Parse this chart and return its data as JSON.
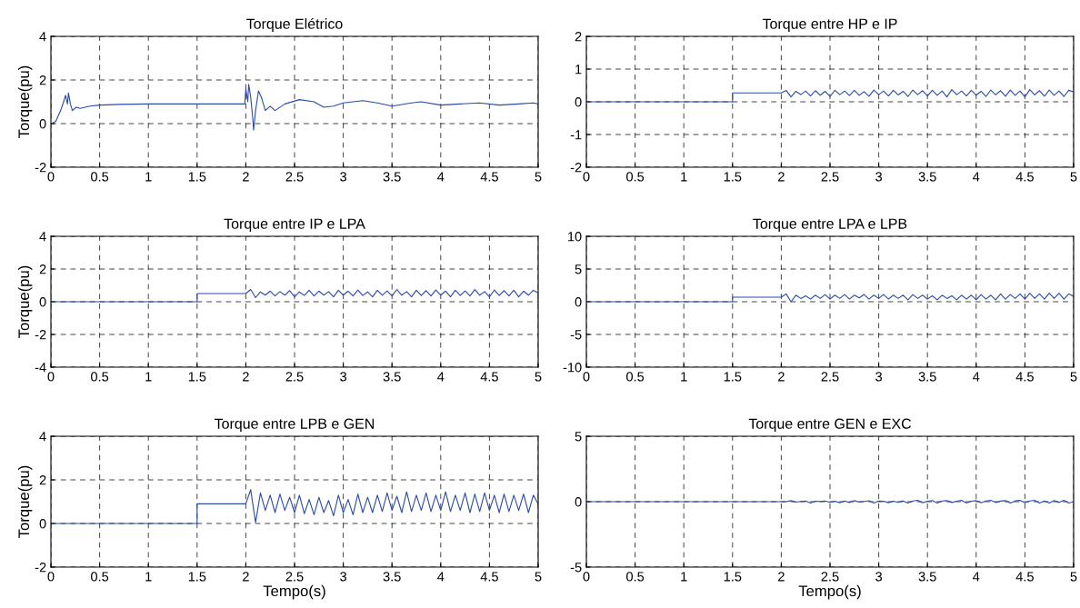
{
  "chart_data": [
    {
      "type": "line",
      "title": "Torque Elétrico",
      "ylabel": "Torque(pu)",
      "xlim": [
        0,
        5
      ],
      "xticks": [
        0,
        0.5,
        1,
        1.5,
        2,
        2.5,
        3,
        3.5,
        4,
        4.5,
        5
      ],
      "ylim": [
        -2,
        4
      ],
      "yticks": [
        -2,
        0,
        2,
        4
      ],
      "grid": true,
      "x": [
        0,
        0.05,
        0.1,
        0.13,
        0.15,
        0.17,
        0.18,
        0.2,
        0.22,
        0.26,
        0.3,
        0.4,
        0.5,
        0.7,
        1.0,
        1.5,
        1.99,
        2.0,
        2.02,
        2.03,
        2.05,
        2.07,
        2.08,
        2.1,
        2.13,
        2.16,
        2.2,
        2.25,
        2.3,
        2.4,
        2.55,
        2.7,
        2.8,
        2.9,
        3.0,
        3.2,
        3.35,
        3.5,
        3.7,
        3.8,
        4.0,
        4.2,
        4.4,
        4.6,
        4.8,
        4.95,
        5.0
      ],
      "series": [
        {
          "color": "#2b4bab",
          "values": [
            0,
            0.1,
            0.6,
            1.0,
            1.3,
            0.9,
            1.4,
            0.9,
            0.6,
            0.75,
            0.7,
            0.8,
            0.85,
            0.88,
            0.9,
            0.9,
            0.9,
            1.6,
            1.0,
            1.8,
            1.2,
            0.3,
            -0.3,
            0.6,
            1.5,
            1.2,
            0.6,
            0.8,
            0.6,
            0.9,
            1.1,
            1.0,
            0.75,
            0.8,
            0.95,
            1.05,
            0.95,
            0.8,
            0.95,
            1.0,
            0.85,
            0.9,
            0.95,
            0.85,
            0.9,
            0.95,
            0.9
          ]
        }
      ]
    },
    {
      "type": "line",
      "title": "Torque entre HP e IP",
      "xlim": [
        0,
        5
      ],
      "xticks": [
        0,
        0.5,
        1,
        1.5,
        2,
        2.5,
        3,
        3.5,
        4,
        4.5,
        5
      ],
      "ylim": [
        -2,
        2
      ],
      "yticks": [
        -2,
        -1,
        0,
        1,
        2
      ],
      "grid": true,
      "x": [
        0,
        1.5,
        1.5,
        2.0,
        2.05,
        2.1,
        2.15,
        2.2,
        2.25,
        2.3,
        2.35,
        2.4,
        2.45,
        2.5,
        2.55,
        2.6,
        2.65,
        2.7,
        2.75,
        2.8,
        2.85,
        2.9,
        2.95,
        3.0,
        3.05,
        3.1,
        3.15,
        3.2,
        3.25,
        3.3,
        3.35,
        3.4,
        3.45,
        3.5,
        3.55,
        3.6,
        3.65,
        3.7,
        3.75,
        3.8,
        3.85,
        3.9,
        3.95,
        4.0,
        4.05,
        4.1,
        4.15,
        4.2,
        4.25,
        4.3,
        4.35,
        4.4,
        4.45,
        4.5,
        4.55,
        4.6,
        4.65,
        4.7,
        4.75,
        4.8,
        4.85,
        4.9,
        4.95,
        5.0
      ],
      "series": [
        {
          "color": "#2b4bab",
          "values": [
            0,
            0,
            0.27,
            0.27,
            0.35,
            0.15,
            0.32,
            0.22,
            0.33,
            0.18,
            0.34,
            0.2,
            0.32,
            0.16,
            0.35,
            0.22,
            0.33,
            0.19,
            0.35,
            0.2,
            0.31,
            0.17,
            0.36,
            0.22,
            0.33,
            0.18,
            0.35,
            0.21,
            0.32,
            0.16,
            0.36,
            0.22,
            0.34,
            0.18,
            0.35,
            0.2,
            0.33,
            0.15,
            0.37,
            0.22,
            0.33,
            0.18,
            0.35,
            0.2,
            0.32,
            0.16,
            0.36,
            0.21,
            0.34,
            0.17,
            0.36,
            0.2,
            0.33,
            0.15,
            0.37,
            0.21,
            0.34,
            0.17,
            0.36,
            0.2,
            0.33,
            0.16,
            0.35,
            0.3
          ]
        }
      ]
    },
    {
      "type": "line",
      "title": "Torque entre IP e LPA",
      "ylabel": "Torque(pu)",
      "xlim": [
        0,
        5
      ],
      "xticks": [
        0,
        0.5,
        1,
        1.5,
        2,
        2.5,
        3,
        3.5,
        4,
        4.5,
        5
      ],
      "ylim": [
        -4,
        4
      ],
      "yticks": [
        -4,
        -2,
        0,
        2,
        4
      ],
      "grid": true,
      "x": [
        0,
        1.5,
        1.5,
        2.0,
        2.05,
        2.1,
        2.15,
        2.2,
        2.25,
        2.3,
        2.35,
        2.4,
        2.45,
        2.5,
        2.55,
        2.6,
        2.65,
        2.7,
        2.75,
        2.8,
        2.85,
        2.9,
        2.95,
        3.0,
        3.05,
        3.1,
        3.15,
        3.2,
        3.25,
        3.3,
        3.35,
        3.4,
        3.45,
        3.5,
        3.55,
        3.6,
        3.65,
        3.7,
        3.75,
        3.8,
        3.85,
        3.9,
        3.95,
        4.0,
        4.05,
        4.1,
        4.15,
        4.2,
        4.25,
        4.3,
        4.35,
        4.4,
        4.45,
        4.5,
        4.55,
        4.6,
        4.65,
        4.7,
        4.75,
        4.8,
        4.85,
        4.9,
        4.95,
        5.0
      ],
      "series": [
        {
          "color": "#2b4bab",
          "values": [
            0,
            0,
            0.5,
            0.5,
            0.75,
            0.25,
            0.6,
            0.4,
            0.65,
            0.35,
            0.62,
            0.4,
            0.68,
            0.3,
            0.6,
            0.38,
            0.7,
            0.35,
            0.65,
            0.4,
            0.62,
            0.3,
            0.7,
            0.4,
            0.65,
            0.35,
            0.72,
            0.38,
            0.6,
            0.3,
            0.7,
            0.4,
            0.66,
            0.35,
            0.75,
            0.4,
            0.62,
            0.3,
            0.7,
            0.38,
            0.68,
            0.35,
            0.72,
            0.4,
            0.65,
            0.3,
            0.7,
            0.38,
            0.66,
            0.35,
            0.74,
            0.4,
            0.62,
            0.3,
            0.72,
            0.38,
            0.68,
            0.35,
            0.7,
            0.3,
            0.65,
            0.4,
            0.7,
            0.55
          ]
        }
      ]
    },
    {
      "type": "line",
      "title": "Torque entre LPA e LPB",
      "xlim": [
        0,
        5
      ],
      "xticks": [
        0,
        0.5,
        1,
        1.5,
        2,
        2.5,
        3,
        3.5,
        4,
        4.5,
        5
      ],
      "ylim": [
        -10,
        10
      ],
      "yticks": [
        -10,
        -5,
        0,
        5,
        10
      ],
      "grid": true,
      "x": [
        0,
        1.5,
        1.5,
        2.0,
        2.05,
        2.1,
        2.15,
        2.2,
        2.25,
        2.3,
        2.35,
        2.4,
        2.45,
        2.5,
        2.55,
        2.6,
        2.65,
        2.7,
        2.75,
        2.8,
        2.85,
        2.9,
        2.95,
        3.0,
        3.05,
        3.1,
        3.15,
        3.2,
        3.25,
        3.3,
        3.35,
        3.4,
        3.45,
        3.5,
        3.55,
        3.6,
        3.65,
        3.7,
        3.75,
        3.8,
        3.85,
        3.9,
        3.95,
        4.0,
        4.05,
        4.1,
        4.15,
        4.2,
        4.25,
        4.3,
        4.35,
        4.4,
        4.45,
        4.5,
        4.55,
        4.6,
        4.65,
        4.7,
        4.75,
        4.8,
        4.85,
        4.9,
        4.95,
        5.0
      ],
      "series": [
        {
          "color": "#2b4bab",
          "values": [
            0,
            0,
            0.7,
            0.7,
            1.2,
            0.0,
            1.0,
            0.5,
            0.9,
            0.4,
            1.0,
            0.5,
            1.1,
            0.4,
            1.0,
            0.5,
            1.1,
            0.4,
            1.0,
            0.6,
            1.1,
            0.4,
            1.0,
            0.5,
            1.1,
            0.4,
            1.0,
            0.5,
            1.0,
            0.3,
            1.1,
            0.5,
            1.0,
            0.4,
            0.9,
            0.3,
            1.0,
            0.5,
            0.9,
            0.3,
            1.0,
            0.4,
            1.0,
            0.3,
            1.1,
            0.4,
            1.0,
            0.3,
            1.2,
            0.4,
            1.1,
            0.5,
            1.2,
            0.4,
            1.3,
            0.5,
            1.2,
            0.4,
            1.3,
            0.5,
            1.3,
            0.4,
            1.2,
            0.8
          ]
        }
      ]
    },
    {
      "type": "line",
      "title": "Torque entre LPB e GEN",
      "xlabel": "Tempo(s)",
      "ylabel": "Torque(pu)",
      "xlim": [
        0,
        5
      ],
      "xticks": [
        0,
        0.5,
        1,
        1.5,
        2,
        2.5,
        3,
        3.5,
        4,
        4.5,
        5
      ],
      "ylim": [
        -2,
        4
      ],
      "yticks": [
        -2,
        0,
        2,
        4
      ],
      "grid": true,
      "x": [
        0,
        1.5,
        1.5,
        2.0,
        2.05,
        2.1,
        2.15,
        2.2,
        2.25,
        2.3,
        2.35,
        2.4,
        2.45,
        2.5,
        2.55,
        2.6,
        2.65,
        2.7,
        2.75,
        2.8,
        2.85,
        2.9,
        2.95,
        3.0,
        3.05,
        3.1,
        3.15,
        3.2,
        3.25,
        3.3,
        3.35,
        3.4,
        3.45,
        3.5,
        3.55,
        3.6,
        3.65,
        3.7,
        3.75,
        3.8,
        3.85,
        3.9,
        3.95,
        4.0,
        4.05,
        4.1,
        4.15,
        4.2,
        4.25,
        4.3,
        4.35,
        4.4,
        4.45,
        4.5,
        4.55,
        4.6,
        4.65,
        4.7,
        4.75,
        4.8,
        4.85,
        4.9,
        4.95,
        5.0
      ],
      "series": [
        {
          "color": "#2b4bab",
          "values": [
            0,
            0,
            0.9,
            0.9,
            1.55,
            0.05,
            1.4,
            0.6,
            1.3,
            0.5,
            1.35,
            0.6,
            1.2,
            0.5,
            1.3,
            0.45,
            1.1,
            0.4,
            1.2,
            0.5,
            1.05,
            0.35,
            1.3,
            0.5,
            1.1,
            0.4,
            1.35,
            0.5,
            1.2,
            0.5,
            1.3,
            0.55,
            1.4,
            0.6,
            1.25,
            0.5,
            1.45,
            0.55,
            1.3,
            0.6,
            1.4,
            0.55,
            1.3,
            0.6,
            1.45,
            0.55,
            1.3,
            0.6,
            1.4,
            0.5,
            1.35,
            0.55,
            1.4,
            0.6,
            1.3,
            0.5,
            1.35,
            0.55,
            1.3,
            0.6,
            1.35,
            0.5,
            1.3,
            0.9
          ]
        }
      ]
    },
    {
      "type": "line",
      "title": "Torque entre GEN e EXC",
      "xlabel": "Tempo(s)",
      "xlim": [
        0,
        5
      ],
      "xticks": [
        0,
        0.5,
        1,
        1.5,
        2,
        2.5,
        3,
        3.5,
        4,
        4.5,
        5
      ],
      "ylim": [
        -5,
        5
      ],
      "yticks": [
        -5,
        0,
        5
      ],
      "grid": true,
      "x": [
        0,
        1.5,
        1.5,
        2.0,
        2.05,
        2.1,
        2.15,
        2.2,
        2.25,
        2.3,
        2.35,
        2.4,
        2.45,
        2.5,
        2.55,
        2.6,
        2.65,
        2.7,
        2.75,
        2.8,
        2.85,
        2.9,
        2.95,
        3.0,
        3.05,
        3.1,
        3.15,
        3.2,
        3.25,
        3.3,
        3.35,
        3.4,
        3.45,
        3.5,
        3.55,
        3.6,
        3.65,
        3.7,
        3.75,
        3.8,
        3.85,
        3.9,
        3.95,
        4.0,
        4.05,
        4.1,
        4.15,
        4.2,
        4.25,
        4.3,
        4.35,
        4.4,
        4.45,
        4.5,
        4.55,
        4.6,
        4.65,
        4.7,
        4.75,
        4.8,
        4.85,
        4.9,
        4.95,
        5.0
      ],
      "series": [
        {
          "color": "#2b4bab",
          "values": [
            0,
            0,
            0,
            0,
            0,
            0.08,
            -0.03,
            0.02,
            0.05,
            -0.1,
            0.03,
            0.02,
            0.05,
            -0.05,
            0.03,
            -0.08,
            0.05,
            -0.06,
            0.08,
            -0.04,
            0.02,
            0.07,
            -0.1,
            0.05,
            0.03,
            -0.08,
            0.04,
            -0.05,
            0.06,
            -0.1,
            0.05,
            0.1,
            -0.08,
            0.03,
            0.09,
            -0.1,
            0.05,
            0.08,
            -0.06,
            0.04,
            0.1,
            -0.1,
            0.03,
            0.08,
            -0.08,
            0.05,
            0.1,
            -0.06,
            0.04,
            0.08,
            -0.1,
            0.06,
            0.1,
            -0.08,
            0.05,
            0.1,
            -0.1,
            0.06,
            -0.1,
            0.08,
            -0.06,
            0.1,
            -0.1,
            0.0
          ]
        }
      ]
    }
  ]
}
